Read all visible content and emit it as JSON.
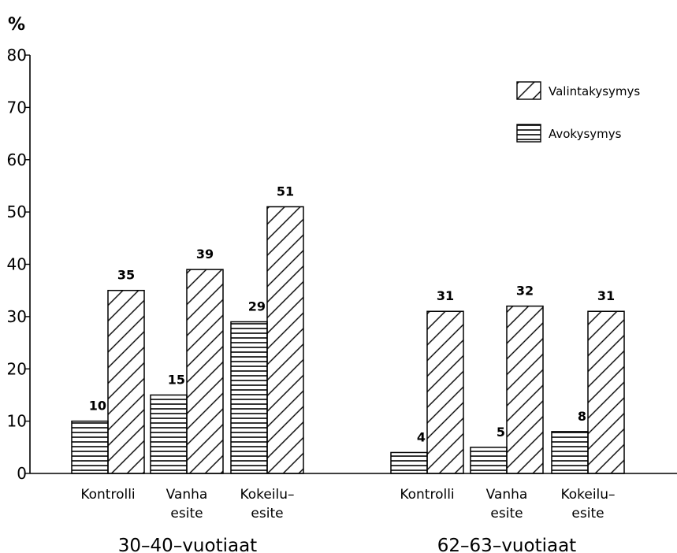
{
  "chart_data": {
    "type": "bar",
    "ylabel": "%",
    "ylim": [
      0,
      80
    ],
    "yticks": [
      0,
      10,
      20,
      30,
      40,
      50,
      60,
      70,
      80
    ],
    "grid": false,
    "legend_position": "top-right",
    "groups": [
      {
        "label": "30–40–vuotiaat",
        "categories": [
          {
            "lines": [
              "Kontrolli"
            ]
          },
          {
            "lines": [
              "Vanha",
              "esite"
            ]
          },
          {
            "lines": [
              "Kokeilu–",
              "esite"
            ]
          }
        ]
      },
      {
        "label": "62–63–vuotiaat",
        "categories": [
          {
            "lines": [
              "Kontrolli"
            ]
          },
          {
            "lines": [
              "Vanha",
              "esite"
            ]
          },
          {
            "lines": [
              "Kokeilu–",
              "esite"
            ]
          }
        ]
      }
    ],
    "series": [
      {
        "name": "Avokysymys",
        "pattern": "horizontal",
        "values": [
          10,
          15,
          29,
          4,
          5,
          8
        ]
      },
      {
        "name": "Valintakysymys",
        "pattern": "diagonal",
        "values": [
          35,
          39,
          51,
          31,
          32,
          31
        ]
      }
    ]
  }
}
